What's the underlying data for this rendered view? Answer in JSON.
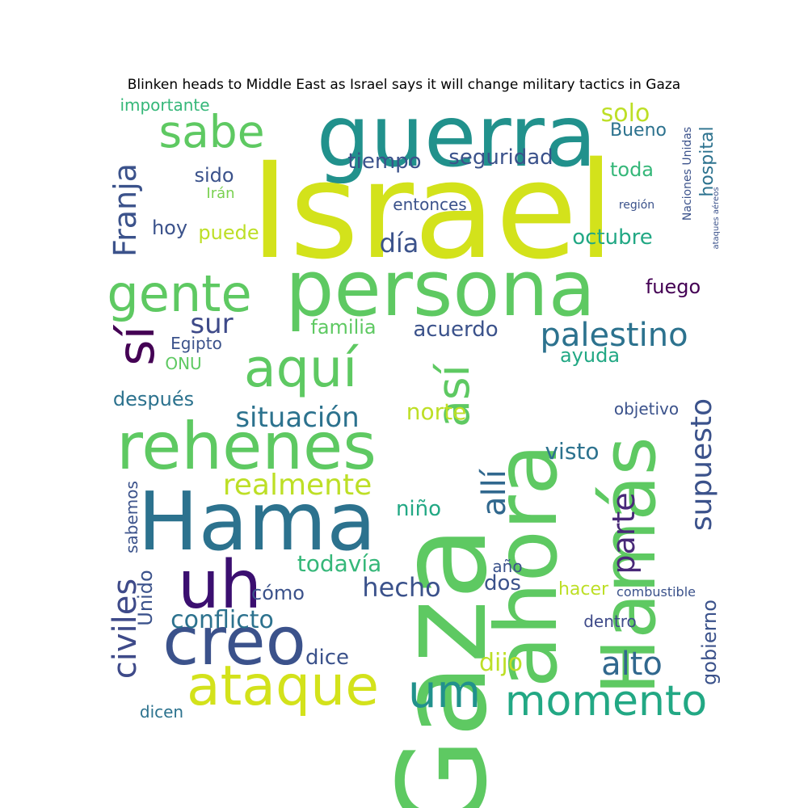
{
  "title": "Blinken heads to Middle East as Israel says it will change military tactics in Gaza",
  "chart_data": {
    "type": "wordcloud",
    "colormap": "viridis",
    "words": [
      {
        "text": "Israel",
        "color": "#d3e21b"
      },
      {
        "text": "Gaza",
        "color": "#5ec962"
      },
      {
        "text": "guerra",
        "color": "#21918c"
      },
      {
        "text": "persona",
        "color": "#5ec962"
      },
      {
        "text": "Hama",
        "color": "#2c728e"
      },
      {
        "text": "ahora",
        "color": "#5ec962"
      },
      {
        "text": "Hamás",
        "color": "#5ec962"
      },
      {
        "text": "rehenes",
        "color": "#5ec962"
      },
      {
        "text": "creo",
        "color": "#3b528b"
      },
      {
        "text": "uh",
        "color": "#3b0f70"
      },
      {
        "text": "ataque",
        "color": "#d3e21b"
      },
      {
        "text": "sabe",
        "color": "#5ec962"
      },
      {
        "text": "gente",
        "color": "#5ec962"
      },
      {
        "text": "aquí",
        "color": "#5ec962"
      },
      {
        "text": "momento",
        "color": "#22a884"
      },
      {
        "text": "um",
        "color": "#21918c"
      },
      {
        "text": "sí",
        "color": "#440154"
      },
      {
        "text": "así",
        "color": "#5ec962"
      },
      {
        "text": "palestino",
        "color": "#2c728e"
      },
      {
        "text": "allí",
        "color": "#31688e"
      },
      {
        "text": "Franja",
        "color": "#3b528b"
      },
      {
        "text": "civiles",
        "color": "#3e4a89"
      },
      {
        "text": "situación",
        "color": "#2c728e"
      },
      {
        "text": "realmente",
        "color": "#bddf26"
      },
      {
        "text": "conflicto",
        "color": "#2c728e"
      },
      {
        "text": "supuesto",
        "color": "#3b528b"
      },
      {
        "text": "parte",
        "color": "#482878"
      },
      {
        "text": "alto",
        "color": "#31688e"
      },
      {
        "text": "día",
        "color": "#3b528b"
      },
      {
        "text": "sur",
        "color": "#3e4a89"
      },
      {
        "text": "tiempo",
        "color": "#3b528b"
      },
      {
        "text": "seguridad",
        "color": "#3b528b"
      },
      {
        "text": "octubre",
        "color": "#22a884"
      },
      {
        "text": "hospital",
        "color": "#2c728e"
      },
      {
        "text": "gobierno",
        "color": "#3b528b"
      },
      {
        "text": "todavía",
        "color": "#35b779"
      },
      {
        "text": "hecho",
        "color": "#3b528b"
      },
      {
        "text": "dijo",
        "color": "#bddf26"
      },
      {
        "text": "dice",
        "color": "#3b528b"
      },
      {
        "text": "niño",
        "color": "#22a884"
      },
      {
        "text": "visto",
        "color": "#2c728e"
      },
      {
        "text": "norte",
        "color": "#bddf26"
      },
      {
        "text": "ayuda",
        "color": "#22a884"
      },
      {
        "text": "acuerdo",
        "color": "#3b528b"
      },
      {
        "text": "familia",
        "color": "#5ec962"
      },
      {
        "text": "fuego",
        "color": "#440154"
      },
      {
        "text": "toda",
        "color": "#35b779"
      },
      {
        "text": "solo",
        "color": "#bddf26"
      },
      {
        "text": "Bueno",
        "color": "#2c728e"
      },
      {
        "text": "sido",
        "color": "#3b528b"
      },
      {
        "text": "hoy",
        "color": "#3b528b"
      },
      {
        "text": "puede",
        "color": "#bddf26"
      },
      {
        "text": "después",
        "color": "#2c728e"
      },
      {
        "text": "importante",
        "color": "#35b779"
      },
      {
        "text": "Unido",
        "color": "#3b528b"
      },
      {
        "text": "sabemos",
        "color": "#3b528b"
      },
      {
        "text": "cómo",
        "color": "#3b528b"
      },
      {
        "text": "dos",
        "color": "#3b528b"
      },
      {
        "text": "hacer",
        "color": "#bddf26"
      },
      {
        "text": "objetivo",
        "color": "#3b528b"
      },
      {
        "text": "dentro",
        "color": "#3e4a89"
      },
      {
        "text": "dicen",
        "color": "#2c728e"
      },
      {
        "text": "entonces",
        "color": "#3b528b"
      },
      {
        "text": "Egipto",
        "color": "#3b528b"
      },
      {
        "text": "ONU",
        "color": "#5ec962"
      },
      {
        "text": "Irán",
        "color": "#7ad151"
      },
      {
        "text": "año",
        "color": "#3b528b"
      },
      {
        "text": "combustible",
        "color": "#3b528b"
      },
      {
        "text": "Naciones Unidas",
        "color": "#3b528b"
      },
      {
        "text": "región",
        "color": "#3b528b"
      },
      {
        "text": "ataques aéreos",
        "color": "#3b528b"
      }
    ]
  }
}
